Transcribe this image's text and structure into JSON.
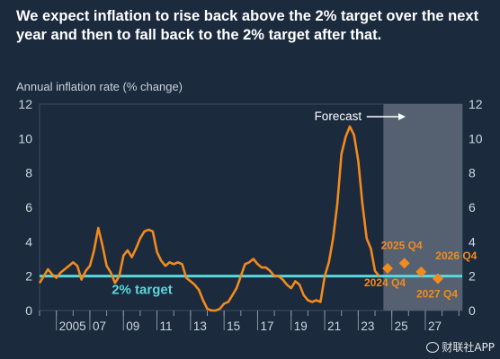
{
  "chart_data": {
    "type": "line",
    "title": "We expect inflation to rise back above the 2% target over the next year and then to fall back to the 2% target after that.",
    "ylabel": "Annual inflation rate (% change)",
    "ylim": [
      0,
      12
    ],
    "yticks": [
      0,
      2,
      4,
      6,
      8,
      10,
      12
    ],
    "xlim": [
      2004,
      2029.2
    ],
    "xticks": [
      {
        "x": 2005,
        "label": "2005"
      },
      {
        "x": 2007,
        "label": "07"
      },
      {
        "x": 2009,
        "label": "09"
      },
      {
        "x": 2011,
        "label": "11"
      },
      {
        "x": 2013,
        "label": "13"
      },
      {
        "x": 2015,
        "label": "15"
      },
      {
        "x": 2017,
        "label": "17"
      },
      {
        "x": 2019,
        "label": "19"
      },
      {
        "x": 2021,
        "label": "21"
      },
      {
        "x": 2023,
        "label": "23"
      },
      {
        "x": 2025,
        "label": "25"
      },
      {
        "x": 2027,
        "label": "27"
      }
    ],
    "forecast": {
      "start": 2024.5,
      "label": "Forecast"
    },
    "target": {
      "value": 2,
      "label": "2% target",
      "color": "#59d8dc"
    },
    "series": [
      {
        "color": "#f28a1e",
        "x": [
          2004.0,
          2004.25,
          2004.5,
          2004.75,
          2005.0,
          2005.25,
          2005.5,
          2005.75,
          2006.0,
          2006.25,
          2006.5,
          2006.75,
          2007.0,
          2007.25,
          2007.5,
          2007.75,
          2008.0,
          2008.25,
          2008.5,
          2008.75,
          2009.0,
          2009.25,
          2009.5,
          2009.75,
          2010.0,
          2010.25,
          2010.5,
          2010.75,
          2011.0,
          2011.25,
          2011.5,
          2011.75,
          2012.0,
          2012.25,
          2012.5,
          2012.75,
          2013.0,
          2013.25,
          2013.5,
          2013.75,
          2014.0,
          2014.25,
          2014.5,
          2014.75,
          2015.0,
          2015.25,
          2015.5,
          2015.75,
          2016.0,
          2016.25,
          2016.5,
          2016.75,
          2017.0,
          2017.25,
          2017.5,
          2017.75,
          2018.0,
          2018.25,
          2018.5,
          2018.75,
          2019.0,
          2019.25,
          2019.5,
          2019.75,
          2020.0,
          2020.25,
          2020.5,
          2020.75,
          2021.0,
          2021.25,
          2021.5,
          2021.75,
          2022.0,
          2022.25,
          2022.5,
          2022.75,
          2023.0,
          2023.25,
          2023.5,
          2023.75,
          2024.0,
          2024.25
        ],
        "y": [
          1.6,
          2.0,
          2.4,
          2.1,
          1.9,
          2.2,
          2.4,
          2.6,
          2.8,
          2.6,
          1.8,
          2.3,
          2.6,
          3.5,
          4.8,
          3.8,
          2.6,
          2.2,
          1.6,
          2.0,
          3.2,
          3.5,
          3.1,
          3.6,
          4.2,
          4.6,
          4.7,
          4.6,
          3.4,
          2.9,
          2.6,
          2.8,
          2.7,
          2.8,
          2.7,
          1.9,
          1.7,
          1.5,
          1.2,
          0.6,
          0.1,
          0.0,
          0.0,
          0.1,
          0.4,
          0.5,
          0.9,
          1.3,
          2.0,
          2.7,
          2.8,
          3.0,
          2.7,
          2.5,
          2.5,
          2.3,
          2.0,
          2.0,
          1.8,
          1.5,
          1.3,
          1.7,
          1.5,
          0.9,
          0.6,
          0.5,
          0.6,
          0.5,
          2.0,
          2.8,
          4.2,
          6.2,
          9.1,
          10.1,
          10.7,
          10.2,
          8.7,
          6.2,
          4.2,
          3.6,
          2.3,
          2.0
        ]
      }
    ],
    "projections": [
      {
        "x": 2024.75,
        "y": 2.45,
        "label": "2024 Q4"
      },
      {
        "x": 2025.75,
        "y": 2.75,
        "label": "2025 Q4"
      },
      {
        "x": 2026.75,
        "y": 2.25,
        "label": "2026 Q4"
      },
      {
        "x": 2027.75,
        "y": 1.85,
        "label": "2027 Q4"
      }
    ],
    "colors": {
      "background": "#1b2a3d",
      "forecast_band": "#596473",
      "axis_text": "#d0d7e0"
    }
  },
  "watermark": "财联社APP"
}
